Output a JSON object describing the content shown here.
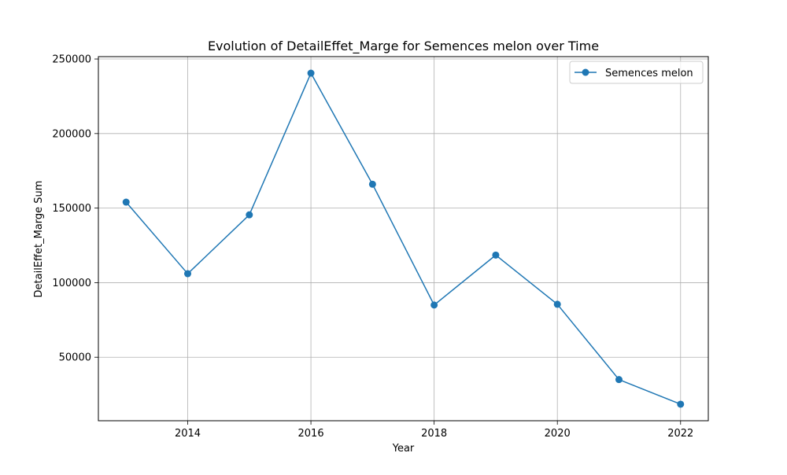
{
  "chart_data": {
    "type": "line",
    "title": "Evolution of DetailEffet_Marge for Semences melon over Time",
    "xlabel": "Year",
    "ylabel": "DetailEffet_Marge Sum",
    "x": [
      2013,
      2014,
      2015,
      2016,
      2017,
      2018,
      2019,
      2020,
      2021,
      2022
    ],
    "series": [
      {
        "name": "Semences melon",
        "values": [
          154000,
          106000,
          145500,
          240500,
          166000,
          85000,
          118500,
          85500,
          35000,
          18500
        ],
        "color": "#1f77b4",
        "marker": "circle"
      }
    ],
    "xlim": [
      2012.55,
      2022.45
    ],
    "ylim": [
      7400,
      251600
    ],
    "xticks": [
      2014,
      2016,
      2018,
      2020,
      2022
    ],
    "yticks": [
      50000,
      100000,
      150000,
      200000,
      250000
    ],
    "grid": true,
    "legend_position": "top-right"
  }
}
